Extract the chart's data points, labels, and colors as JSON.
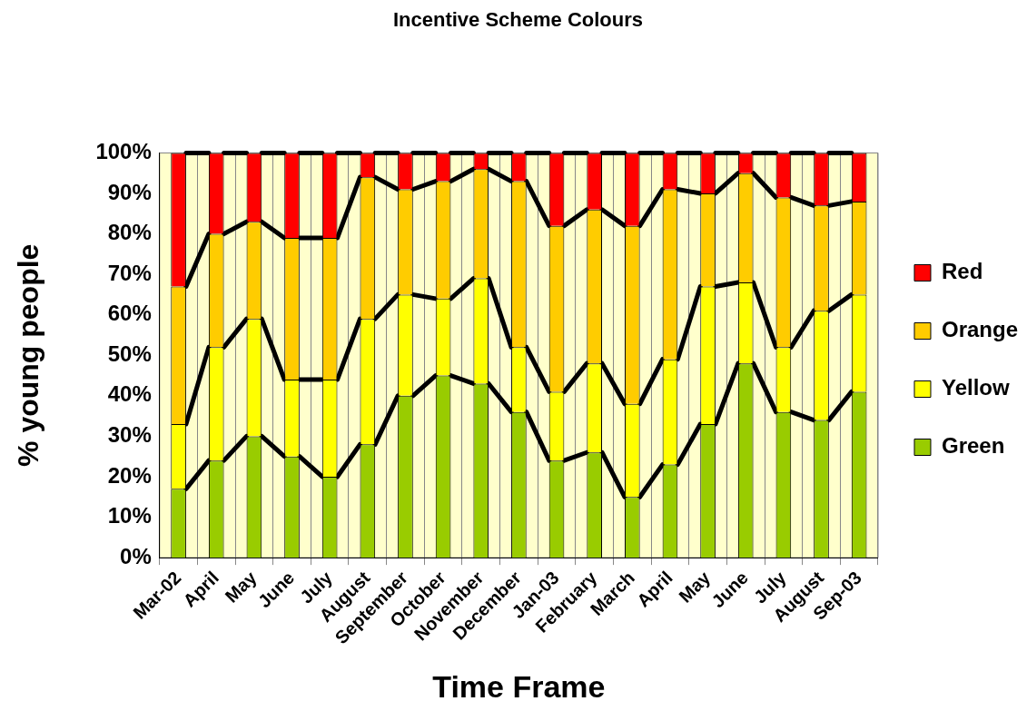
{
  "chart_data": {
    "type": "bar",
    "stacked": true,
    "title": "Incentive Scheme Colours",
    "xlabel": "Time Frame",
    "ylabel": "% young people",
    "categories": [
      "Mar-02",
      "April",
      "May",
      "June",
      "July",
      "August",
      "September",
      "October",
      "November",
      "December",
      "Jan-03",
      "February",
      "March",
      "April",
      "May",
      "June",
      "July",
      "August",
      "Sep-03"
    ],
    "series": [
      {
        "name": "Green",
        "color": "#99cc00",
        "values": [
          17,
          24,
          30,
          25,
          20,
          28,
          40,
          45,
          43,
          36,
          24,
          26,
          15,
          23,
          33,
          48,
          36,
          34,
          41
        ]
      },
      {
        "name": "Yellow",
        "color": "#ffff00",
        "values": [
          16,
          28,
          29,
          19,
          24,
          31,
          25,
          19,
          26,
          16,
          17,
          22,
          23,
          26,
          34,
          20,
          16,
          27,
          24
        ]
      },
      {
        "name": "Orange",
        "color": "#ffcc00",
        "values": [
          34,
          28,
          24,
          35,
          35,
          35,
          26,
          29,
          27,
          41,
          41,
          38,
          44,
          42,
          23,
          27,
          37,
          26,
          23
        ]
      },
      {
        "name": "Red",
        "color": "#ff0000",
        "values": [
          33,
          20,
          17,
          21,
          21,
          6,
          9,
          7,
          4,
          7,
          18,
          14,
          18,
          9,
          10,
          5,
          11,
          13,
          12
        ]
      }
    ],
    "ylim": [
      0,
      100
    ],
    "yticks": [
      {
        "value": 0,
        "label": "0%"
      },
      {
        "value": 10,
        "label": "10%"
      },
      {
        "value": 20,
        "label": "20%"
      },
      {
        "value": 30,
        "label": "30%"
      },
      {
        "value": 40,
        "label": "40%"
      },
      {
        "value": 50,
        "label": "50%"
      },
      {
        "value": 60,
        "label": "60%"
      },
      {
        "value": 70,
        "label": "70%"
      },
      {
        "value": 80,
        "label": "80%"
      },
      {
        "value": 90,
        "label": "90%"
      },
      {
        "value": 100,
        "label": "100%"
      }
    ],
    "grid": "x",
    "legend": "right"
  }
}
